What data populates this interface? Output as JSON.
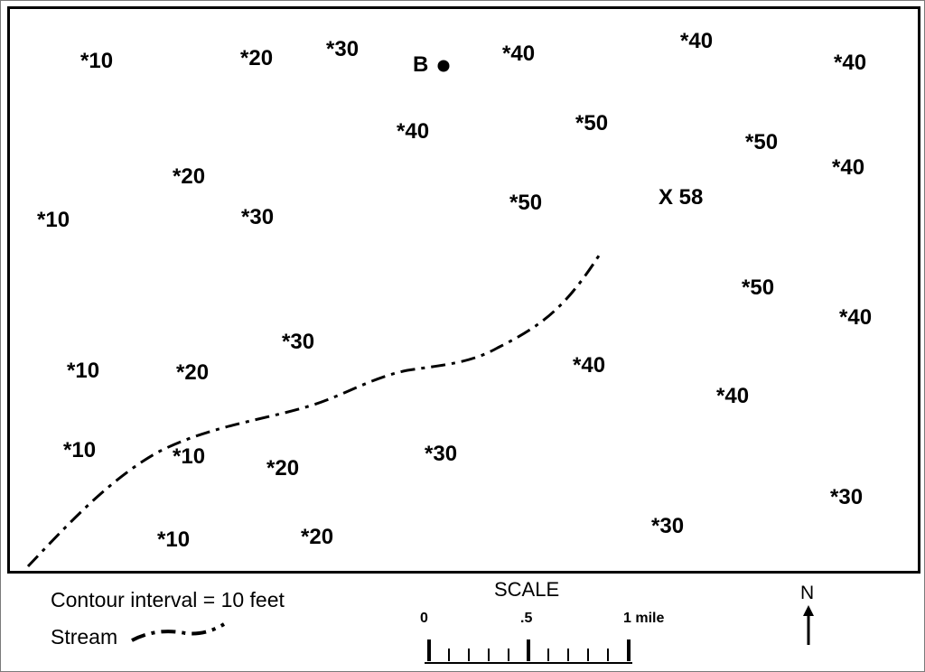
{
  "map": {
    "elevations": [
      "*10",
      "*20",
      "*30",
      "*40",
      "*40",
      "*40",
      "*40",
      "*50",
      "*50",
      "*20",
      "*10",
      "*30",
      "*50",
      "*40",
      "*50",
      "*40",
      "*30",
      "*10",
      "*20",
      "*40",
      "*40",
      "*10",
      "*10",
      "*20",
      "*30",
      "*30",
      "*10",
      "*20",
      "*30"
    ],
    "point_b": "B",
    "summit_label": "X 58",
    "stream_name": "Stream"
  },
  "legend": {
    "contour_interval": "Contour interval = 10 feet",
    "stream_label": "Stream"
  },
  "scale": {
    "title": "SCALE",
    "label_0": "0",
    "label_half": ".5",
    "label_1": "1 mile"
  },
  "north": {
    "label": "N"
  }
}
